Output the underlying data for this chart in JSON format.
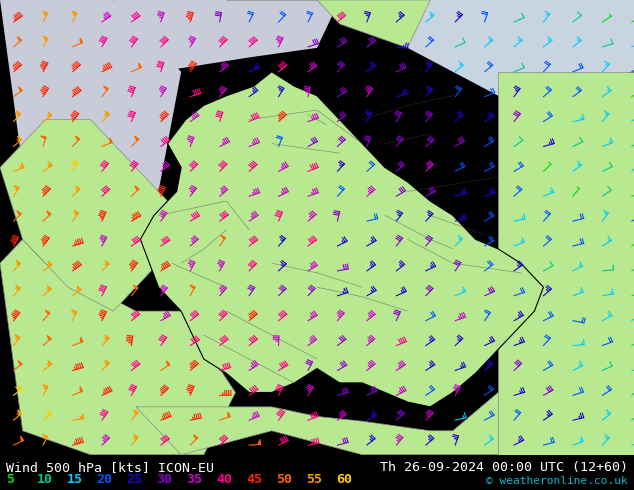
{
  "title_left": "Wind 500 hPa [kts] ICON-EU",
  "title_right": "Th 26-09-2024 00:00 UTC (12+60)",
  "copyright": "© weatheronline.co.uk",
  "legend_values": [
    5,
    10,
    15,
    20,
    25,
    30,
    35,
    40,
    45,
    50,
    55,
    60
  ],
  "legend_colors": [
    "#00dd00",
    "#00cc88",
    "#00ccff",
    "#0055ff",
    "#2200cc",
    "#8800cc",
    "#cc00cc",
    "#ff0088",
    "#ff2200",
    "#ff6600",
    "#ff9900",
    "#ffcc00"
  ],
  "background_land": "#b8e890",
  "background_sea": "#c8ccd8",
  "background_sea2": "#d0d8e0",
  "border_germany": "#000000",
  "border_neighbors": "#888888",
  "title_color": "#ffffff",
  "title_fontsize": 9.5,
  "legend_fontsize": 9.5,
  "figsize": [
    6.34,
    4.9
  ],
  "dpi": 100,
  "bottom_bar_color": "#000000",
  "speed_thresholds": [
    5,
    10,
    15,
    20,
    25,
    30,
    35,
    40,
    45,
    50,
    55,
    60
  ],
  "barb_colors": [
    "#00dd00",
    "#00cc88",
    "#00ccff",
    "#0055ff",
    "#2200cc",
    "#8800cc",
    "#cc00cc",
    "#ff0088",
    "#ff2200",
    "#ff6600",
    "#ff9900",
    "#ffcc00"
  ]
}
